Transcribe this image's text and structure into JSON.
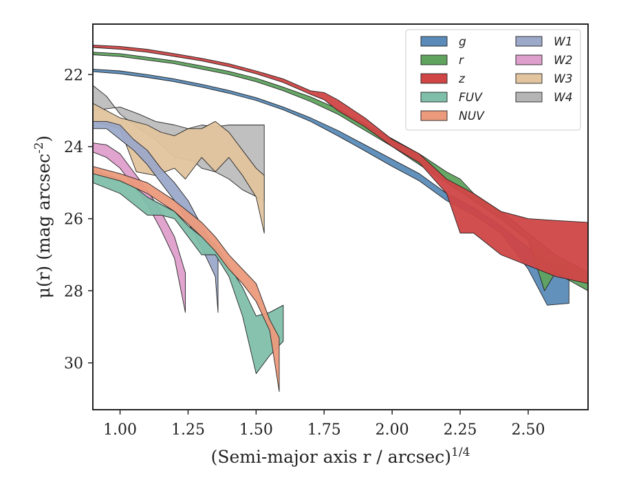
{
  "chart_data": {
    "type": "area",
    "xlabel": "(Semi-major axis r / arcsec)^{1/4}",
    "ylabel": "μ(r) (mag arcsec^{-2})",
    "xlim": [
      0.9,
      2.72
    ],
    "ylim": [
      31.3,
      20.6
    ],
    "y_inverted": true,
    "x_ticks": [
      1.0,
      1.25,
      1.5,
      1.75,
      2.0,
      2.25,
      2.5
    ],
    "x_tick_labels": [
      "1.00",
      "1.25",
      "1.50",
      "1.75",
      "2.00",
      "2.25",
      "2.50"
    ],
    "y_ticks": [
      22,
      24,
      26,
      28,
      30
    ],
    "y_tick_labels": [
      "22",
      "24",
      "26",
      "28",
      "30"
    ],
    "grid": false,
    "legend_position": "top-right",
    "legend_columns": 2,
    "series": [
      {
        "name": "W4",
        "color": "#b5b5b5",
        "upper": [
          [
            0.9,
            22.3
          ],
          [
            0.95,
            22.6
          ],
          [
            1.0,
            23.1
          ],
          [
            1.07,
            23.5
          ],
          [
            1.13,
            23.8
          ],
          [
            1.2,
            24.3
          ],
          [
            1.27,
            24.4
          ],
          [
            1.3,
            24.6
          ],
          [
            1.35,
            24.7
          ],
          [
            1.4,
            24.9
          ],
          [
            1.45,
            25.2
          ],
          [
            1.53,
            25.5
          ]
        ],
        "lower": [
          [
            0.9,
            23.0
          ],
          [
            1.0,
            22.9
          ],
          [
            1.07,
            23.1
          ],
          [
            1.13,
            23.3
          ],
          [
            1.2,
            23.4
          ],
          [
            1.25,
            23.5
          ],
          [
            1.3,
            23.4
          ],
          [
            1.35,
            23.45
          ],
          [
            1.4,
            23.4
          ],
          [
            1.45,
            23.4
          ],
          [
            1.53,
            23.4
          ]
        ]
      },
      {
        "name": "W3",
        "color": "#e2c49e",
        "upper": [
          [
            0.9,
            23.3
          ],
          [
            1.0,
            23.5
          ],
          [
            1.06,
            24.7
          ],
          [
            1.13,
            24.8
          ],
          [
            1.2,
            24.6
          ],
          [
            1.24,
            24.9
          ],
          [
            1.3,
            24.3
          ],
          [
            1.35,
            24.7
          ],
          [
            1.4,
            24.3
          ],
          [
            1.45,
            24.8
          ],
          [
            1.5,
            25.4
          ],
          [
            1.53,
            26.4
          ]
        ],
        "lower": [
          [
            0.9,
            22.8
          ],
          [
            1.0,
            23.2
          ],
          [
            1.05,
            23.3
          ],
          [
            1.1,
            23.4
          ],
          [
            1.15,
            23.6
          ],
          [
            1.2,
            23.7
          ],
          [
            1.25,
            23.5
          ],
          [
            1.3,
            23.5
          ],
          [
            1.35,
            23.3
          ],
          [
            1.4,
            23.6
          ],
          [
            1.45,
            24.1
          ],
          [
            1.5,
            24.6
          ],
          [
            1.53,
            24.8
          ]
        ]
      },
      {
        "name": "W2",
        "color": "#de9fcc",
        "upper": [
          [
            0.9,
            24.15
          ],
          [
            0.95,
            24.3
          ],
          [
            1.0,
            24.6
          ],
          [
            1.05,
            25.1
          ],
          [
            1.1,
            25.6
          ],
          [
            1.15,
            26.3
          ],
          [
            1.2,
            27.1
          ],
          [
            1.24,
            28.6
          ]
        ],
        "lower": [
          [
            0.9,
            23.9
          ],
          [
            0.95,
            23.95
          ],
          [
            1.0,
            24.2
          ],
          [
            1.05,
            24.7
          ],
          [
            1.1,
            25.2
          ],
          [
            1.15,
            25.8
          ],
          [
            1.2,
            26.5
          ],
          [
            1.24,
            27.5
          ]
        ]
      },
      {
        "name": "W1",
        "color": "#9ca9c9",
        "upper": [
          [
            0.9,
            23.5
          ],
          [
            0.95,
            23.5
          ],
          [
            1.0,
            23.8
          ],
          [
            1.05,
            24.1
          ],
          [
            1.1,
            24.5
          ],
          [
            1.15,
            25.0
          ],
          [
            1.2,
            25.5
          ],
          [
            1.25,
            26.1
          ],
          [
            1.3,
            26.8
          ],
          [
            1.35,
            27.6
          ],
          [
            1.36,
            28.6
          ]
        ],
        "lower": [
          [
            0.9,
            23.3
          ],
          [
            0.95,
            23.3
          ],
          [
            1.0,
            23.4
          ],
          [
            1.05,
            23.8
          ],
          [
            1.1,
            24.1
          ],
          [
            1.15,
            24.6
          ],
          [
            1.2,
            25.0
          ],
          [
            1.25,
            25.5
          ],
          [
            1.3,
            26.2
          ],
          [
            1.35,
            26.9
          ],
          [
            1.36,
            27.1
          ]
        ]
      },
      {
        "name": "FUV",
        "color": "#7fbfaa",
        "upper": [
          [
            0.9,
            25.0
          ],
          [
            1.0,
            25.3
          ],
          [
            1.05,
            25.6
          ],
          [
            1.1,
            25.9
          ],
          [
            1.15,
            25.9
          ],
          [
            1.2,
            26.0
          ],
          [
            1.25,
            26.5
          ],
          [
            1.3,
            27.0
          ],
          [
            1.35,
            27.0
          ],
          [
            1.4,
            27.6
          ],
          [
            1.45,
            28.7
          ],
          [
            1.5,
            30.3
          ],
          [
            1.55,
            29.8
          ],
          [
            1.6,
            29.4
          ]
        ],
        "lower": [
          [
            0.9,
            24.65
          ],
          [
            1.0,
            24.9
          ],
          [
            1.05,
            25.1
          ],
          [
            1.1,
            25.4
          ],
          [
            1.15,
            25.6
          ],
          [
            1.2,
            25.8
          ],
          [
            1.25,
            26.2
          ],
          [
            1.3,
            26.5
          ],
          [
            1.35,
            26.7
          ],
          [
            1.4,
            27.3
          ],
          [
            1.45,
            27.9
          ],
          [
            1.5,
            28.7
          ],
          [
            1.55,
            28.6
          ],
          [
            1.6,
            28.4
          ]
        ]
      },
      {
        "name": "NUV",
        "color": "#eb9a7c",
        "upper": [
          [
            0.9,
            24.75
          ],
          [
            1.0,
            24.95
          ],
          [
            1.1,
            25.3
          ],
          [
            1.2,
            25.8
          ],
          [
            1.3,
            26.5
          ],
          [
            1.35,
            26.9
          ],
          [
            1.4,
            27.4
          ],
          [
            1.45,
            27.8
          ],
          [
            1.5,
            28.3
          ],
          [
            1.55,
            29.1
          ],
          [
            1.585,
            30.8
          ]
        ],
        "lower": [
          [
            0.9,
            24.55
          ],
          [
            1.0,
            24.75
          ],
          [
            1.1,
            25.0
          ],
          [
            1.2,
            25.5
          ],
          [
            1.3,
            26.1
          ],
          [
            1.35,
            26.5
          ],
          [
            1.4,
            27.0
          ],
          [
            1.45,
            27.4
          ],
          [
            1.5,
            27.8
          ],
          [
            1.55,
            28.8
          ],
          [
            1.585,
            29.3
          ]
        ]
      },
      {
        "name": "g",
        "color": "#5a8bb8",
        "upper": [
          [
            0.9,
            21.92
          ],
          [
            1.0,
            21.98
          ],
          [
            1.1,
            22.08
          ],
          [
            1.2,
            22.2
          ],
          [
            1.3,
            22.35
          ],
          [
            1.4,
            22.52
          ],
          [
            1.5,
            22.72
          ],
          [
            1.6,
            22.98
          ],
          [
            1.7,
            23.3
          ],
          [
            1.8,
            23.7
          ],
          [
            1.9,
            24.12
          ],
          [
            2.0,
            24.55
          ],
          [
            2.1,
            24.95
          ],
          [
            2.2,
            25.5
          ],
          [
            2.3,
            25.9
          ],
          [
            2.4,
            26.4
          ],
          [
            2.5,
            27.4
          ],
          [
            2.57,
            28.4
          ],
          [
            2.65,
            28.35
          ]
        ],
        "lower": [
          [
            0.9,
            21.85
          ],
          [
            1.0,
            21.9
          ],
          [
            1.1,
            22.0
          ],
          [
            1.2,
            22.12
          ],
          [
            1.3,
            22.27
          ],
          [
            1.4,
            22.44
          ],
          [
            1.5,
            22.64
          ],
          [
            1.6,
            22.9
          ],
          [
            1.7,
            23.2
          ],
          [
            1.8,
            23.55
          ],
          [
            1.9,
            23.95
          ],
          [
            2.0,
            24.35
          ],
          [
            2.1,
            24.75
          ],
          [
            2.2,
            25.3
          ],
          [
            2.3,
            25.7
          ],
          [
            2.4,
            26.2
          ],
          [
            2.5,
            26.8
          ],
          [
            2.57,
            27.2
          ],
          [
            2.65,
            27.3
          ]
        ]
      },
      {
        "name": "r",
        "color": "#5fa35f",
        "upper": [
          [
            0.9,
            21.45
          ],
          [
            1.0,
            21.5
          ],
          [
            1.1,
            21.6
          ],
          [
            1.2,
            21.7
          ],
          [
            1.3,
            21.85
          ],
          [
            1.4,
            22.0
          ],
          [
            1.5,
            22.2
          ],
          [
            1.6,
            22.45
          ],
          [
            1.7,
            22.75
          ],
          [
            1.8,
            23.1
          ],
          [
            1.9,
            23.55
          ],
          [
            2.0,
            24.0
          ],
          [
            2.1,
            24.5
          ],
          [
            2.2,
            25.0
          ],
          [
            2.3,
            25.5
          ],
          [
            2.4,
            26.0
          ],
          [
            2.5,
            26.6
          ],
          [
            2.56,
            28.0
          ],
          [
            2.6,
            27.5
          ],
          [
            2.72,
            28.0
          ]
        ],
        "lower": [
          [
            0.9,
            21.38
          ],
          [
            1.0,
            21.42
          ],
          [
            1.1,
            21.52
          ],
          [
            1.2,
            21.62
          ],
          [
            1.3,
            21.76
          ],
          [
            1.4,
            21.91
          ],
          [
            1.5,
            22.1
          ],
          [
            1.6,
            22.35
          ],
          [
            1.7,
            22.62
          ],
          [
            1.8,
            22.95
          ],
          [
            1.9,
            23.38
          ],
          [
            2.0,
            23.78
          ],
          [
            2.1,
            24.2
          ],
          [
            2.2,
            24.7
          ],
          [
            2.25,
            24.9
          ],
          [
            2.3,
            25.3
          ],
          [
            2.4,
            25.8
          ],
          [
            2.5,
            26.4
          ],
          [
            2.6,
            27.0
          ],
          [
            2.72,
            27.5
          ]
        ]
      },
      {
        "name": "z",
        "color": "#d04646",
        "upper": [
          [
            0.9,
            21.25
          ],
          [
            1.0,
            21.3
          ],
          [
            1.1,
            21.38
          ],
          [
            1.2,
            21.5
          ],
          [
            1.3,
            21.62
          ],
          [
            1.4,
            21.78
          ],
          [
            1.5,
            21.98
          ],
          [
            1.6,
            22.22
          ],
          [
            1.7,
            22.55
          ],
          [
            1.75,
            22.7
          ],
          [
            1.8,
            23.0
          ],
          [
            1.9,
            23.45
          ],
          [
            2.0,
            24.0
          ],
          [
            2.1,
            24.45
          ],
          [
            2.2,
            25.3
          ],
          [
            2.25,
            26.4
          ],
          [
            2.3,
            26.4
          ],
          [
            2.4,
            27.0
          ],
          [
            2.5,
            27.3
          ],
          [
            2.6,
            27.6
          ],
          [
            2.72,
            27.8
          ]
        ],
        "lower": [
          [
            0.9,
            21.18
          ],
          [
            1.0,
            21.22
          ],
          [
            1.1,
            21.3
          ],
          [
            1.2,
            21.42
          ],
          [
            1.3,
            21.55
          ],
          [
            1.4,
            21.7
          ],
          [
            1.5,
            21.9
          ],
          [
            1.6,
            22.12
          ],
          [
            1.7,
            22.45
          ],
          [
            1.75,
            22.5
          ],
          [
            1.8,
            22.7
          ],
          [
            1.9,
            23.2
          ],
          [
            2.0,
            23.8
          ],
          [
            2.1,
            24.2
          ],
          [
            2.2,
            24.9
          ],
          [
            2.3,
            25.3
          ],
          [
            2.4,
            25.8
          ],
          [
            2.5,
            26.0
          ],
          [
            2.6,
            26.05
          ],
          [
            2.72,
            26.1
          ]
        ]
      }
    ],
    "legend_order": [
      "g",
      "r",
      "z",
      "FUV",
      "NUV",
      "W1",
      "W2",
      "W3",
      "W4"
    ]
  }
}
